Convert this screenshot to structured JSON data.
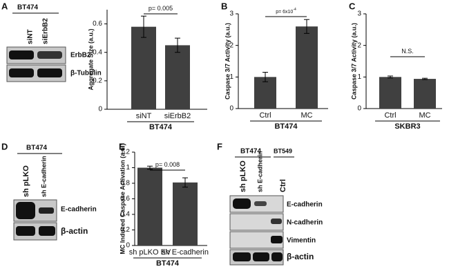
{
  "panel_letters": [
    "A",
    "B",
    "C",
    "D",
    "E",
    "F"
  ],
  "blots": [
    {
      "groups": [
        "BT474"
      ],
      "lanes": [
        "siNT",
        "siErbB2"
      ],
      "bands": [
        "ErbB2",
        "β-Tubulin"
      ]
    },
    {
      "groups": [
        "BT474"
      ],
      "lanes": [
        "sh pLKO",
        "sh E-cadherin"
      ],
      "bands": [
        "E-cadherin",
        "β-actin"
      ]
    },
    {
      "groups": [
        "BT474",
        "BT549"
      ],
      "lanes": [
        "sh pLKO",
        "sh E-cadherin",
        "Ctrl"
      ],
      "bands": [
        "E-cadherin",
        "N-cadherin",
        "Vimentin",
        "β-actin"
      ]
    }
  ],
  "chart_data": [
    {
      "type": "bar",
      "y_label": "Aggregate Size (a.u.)",
      "categories": [
        "siNT",
        "siErbB2"
      ],
      "values": [
        0.58,
        0.45
      ],
      "errors": [
        0.075,
        0.05
      ],
      "color": "#404040",
      "ylim": [
        0,
        0.7
      ],
      "yticks": [
        0,
        0.2,
        0.4,
        0.6
      ],
      "annotation": "p= 0.005",
      "group_label": "BT474"
    },
    {
      "type": "bar",
      "y_label": "Caspase 3/7 Activity (a.u.)",
      "categories": [
        "Ctrl",
        "MC"
      ],
      "values": [
        1.0,
        2.6
      ],
      "errors": [
        0.15,
        0.22
      ],
      "color": "#404040",
      "ylim": [
        0,
        3
      ],
      "yticks": [
        0,
        1,
        2,
        3
      ],
      "annotation": "p= 6x10",
      "annotation_superscript": "-4",
      "group_label": "BT474"
    },
    {
      "type": "bar",
      "y_label": "Caspase 3/7 Activity (a.u.)",
      "categories": [
        "Ctrl",
        "MC"
      ],
      "values": [
        1.0,
        0.94
      ],
      "errors": [
        0.03,
        0.02
      ],
      "color": "#404040",
      "ylim": [
        0,
        3
      ],
      "yticks": [
        0,
        1,
        2,
        3
      ],
      "annotation": "N.S.",
      "group_label": "SKBR3"
    },
    {
      "type": "bar",
      "y_label": "MC Induced Caspase Activation (a.u.)",
      "categories": [
        "sh pLKO EV",
        "sh E-cadherin"
      ],
      "values": [
        1.0,
        0.81
      ],
      "errors": [
        0.02,
        0.06
      ],
      "color": "#404040",
      "ylim": [
        0,
        1.2
      ],
      "yticks": [
        0,
        0.2,
        0.4,
        0.6,
        0.8,
        1,
        1.2
      ],
      "annotation": "p= 0.008",
      "group_label": "BT474"
    }
  ]
}
